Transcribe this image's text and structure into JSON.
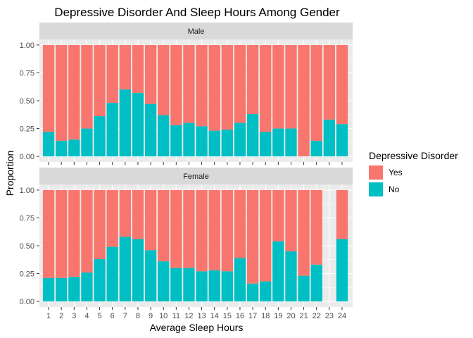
{
  "chart_data": {
    "type": "bar",
    "stacked": true,
    "position": "fill",
    "title": "Depressive Disorder And Sleep Hours Among Gender",
    "xlabel": "Average Sleep Hours",
    "ylabel": "Proportion",
    "ylim": [
      0,
      1
    ],
    "y_ticks": [
      "0.00",
      "0.25",
      "0.50",
      "0.75",
      "1.00"
    ],
    "categories": [
      "1",
      "2",
      "3",
      "4",
      "5",
      "6",
      "7",
      "8",
      "9",
      "10",
      "11",
      "12",
      "13",
      "14",
      "15",
      "16",
      "17",
      "18",
      "19",
      "20",
      "21",
      "22",
      "23",
      "24"
    ],
    "legend": {
      "title": "Depressive Disorder",
      "placement": "right",
      "entries": [
        {
          "label": "Yes",
          "color": "#F8766D"
        },
        {
          "label": "No",
          "color": "#00BFC4"
        }
      ]
    },
    "panel_background": "#EBEBEB",
    "strip_background": "#D9D9D9",
    "grid_color": "#FFFFFF",
    "facets": [
      {
        "label": "Male",
        "no_share": [
          0.22,
          0.14,
          0.15,
          0.25,
          0.36,
          0.48,
          0.6,
          0.57,
          0.47,
          0.37,
          0.28,
          0.3,
          0.27,
          0.23,
          0.24,
          0.3,
          0.38,
          0.22,
          0.25,
          0.25,
          0.0,
          0.14,
          0.33,
          0.29
        ],
        "present": [
          1,
          1,
          1,
          1,
          1,
          1,
          1,
          1,
          1,
          1,
          1,
          1,
          1,
          1,
          1,
          1,
          1,
          1,
          1,
          1,
          1,
          1,
          1,
          1
        ]
      },
      {
        "label": "Female",
        "no_share": [
          0.21,
          0.21,
          0.22,
          0.26,
          0.38,
          0.49,
          0.58,
          0.56,
          0.46,
          0.36,
          0.3,
          0.3,
          0.27,
          0.28,
          0.27,
          0.39,
          0.16,
          0.18,
          0.54,
          0.45,
          0.23,
          0.33,
          0,
          0.56
        ],
        "present": [
          1,
          1,
          1,
          1,
          1,
          1,
          1,
          1,
          1,
          1,
          1,
          1,
          1,
          1,
          1,
          1,
          1,
          1,
          1,
          1,
          1,
          1,
          0,
          1
        ]
      }
    ]
  }
}
